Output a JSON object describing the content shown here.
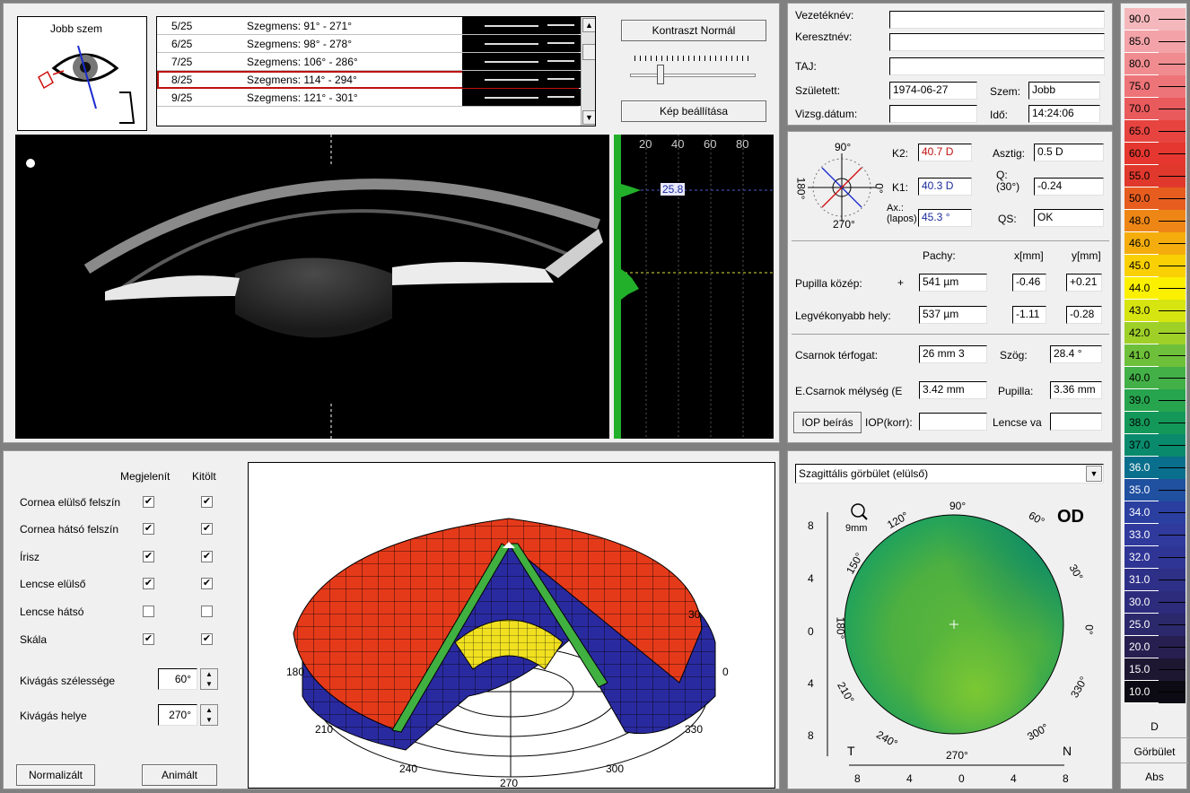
{
  "eye_selector": {
    "label": "Jobb szem"
  },
  "scan_list": {
    "rows": [
      {
        "index": "5/25",
        "segment": "Szegmens: 91° - 271°"
      },
      {
        "index": "6/25",
        "segment": "Szegmens: 98° - 278°"
      },
      {
        "index": "7/25",
        "segment": "Szegmens: 106° - 286°"
      },
      {
        "index": "8/25",
        "segment": "Szegmens: 114° - 294°"
      },
      {
        "index": "9/25",
        "segment": "Szegmens: 121° - 301°"
      }
    ],
    "selected": "8/25"
  },
  "buttons": {
    "contrast": "Kontraszt Normál",
    "image_settings": "Kép beállítása",
    "iop_entry": "IOP beírás",
    "normalized": "Normalizált",
    "animated": "Animált"
  },
  "profile": {
    "ticks": [
      "20",
      "40",
      "60",
      "80"
    ],
    "marker_value": "25.8"
  },
  "patient": {
    "surname_label": "Vezetéknév:",
    "surname": "",
    "firstname_label": "Keresztnév:",
    "firstname": "",
    "taj_label": "TAJ:",
    "taj": "",
    "born_label": "Született:",
    "born": "1974-06-27",
    "eye_label": "Szem:",
    "eye": "Jobb",
    "exam_date_label": "Vizsg.dátum:",
    "exam_date": "",
    "time_label": "Idő:",
    "time": "14:24:06"
  },
  "keratometry": {
    "angle_90": "90°",
    "angle_180": "180°",
    "angle_270": "270°",
    "angle_0": "0°",
    "k2_label": "K2:",
    "k2": "40.7 D",
    "k1_label": "K1:",
    "k1": "40.3 D",
    "ax_label": "Ax.: (lapos)",
    "ax": "45.3 °",
    "astig_label": "Asztig:",
    "astig": "0.5 D",
    "q_label": "Q: (30°)",
    "q": "-0.24",
    "qs_label": "QS:",
    "qs": "OK"
  },
  "pachy": {
    "pachy_header": "Pachy:",
    "x_header": "x[mm]",
    "y_header": "y[mm]",
    "pupil_center_label": "Pupilla közép:",
    "pupil_center_pachy": "541 µm",
    "pupil_center_x": "-0.46",
    "pupil_center_y": "+0.21",
    "thinnest_label": "Legvékonyabb hely:",
    "thinnest_pachy": "537 µm",
    "thinnest_x": "-1.11",
    "thinnest_y": "-0.28"
  },
  "chamber": {
    "volume_label": "Csarnok térfogat:",
    "volume": "26 mm 3",
    "angle_label": "Szög:",
    "angle": "28.4 °",
    "depth_label": "E.Csarnok mélység (E",
    "depth": "3.42 mm",
    "pupil_label": "Pupilla:",
    "pupil": "3.36 mm",
    "iop_corr_label": "IOP(korr):",
    "iop_corr": "",
    "lens_label": "Lencse va",
    "lens": ""
  },
  "display_options": {
    "show_header": "Megjelenít",
    "fill_header": "Kitölt",
    "items": [
      {
        "label": "Cornea elülső felszín",
        "show": true,
        "fill": true
      },
      {
        "label": "Cornea hátsó felszín",
        "show": true,
        "fill": true
      },
      {
        "label": "Írisz",
        "show": true,
        "fill": true
      },
      {
        "label": "Lencse elülső",
        "show": true,
        "fill": true
      },
      {
        "label": "Lencse hátsó",
        "show": false,
        "fill": false
      },
      {
        "label": "Skála",
        "show": true,
        "fill": true
      }
    ],
    "cut_width_label": "Kivágás szélessége",
    "cut_width": "60°",
    "cut_position_label": "Kivágás helye",
    "cut_position": "270°"
  },
  "model3d": {
    "angle_labels": [
      "30",
      "0",
      "330",
      "300",
      "270",
      "240",
      "210",
      "180"
    ]
  },
  "topo_map": {
    "map_select": "Szagittális görbület (elülső)",
    "eye_label": "OD",
    "zoom_label": "9mm",
    "angle_labels": [
      "90°",
      "60°",
      "30°",
      "0°",
      "330°",
      "300°",
      "270°",
      "240°",
      "210°",
      "180°",
      "150°",
      "120°"
    ],
    "y_ticks": [
      "8",
      "4",
      "0",
      "4",
      "8"
    ],
    "x_ticks": [
      "8",
      "4",
      "0",
      "4",
      "8"
    ],
    "temporal": "T",
    "nasal": "N"
  },
  "color_scale": {
    "values": [
      "90.0",
      "85.0",
      "80.0",
      "75.0",
      "70.0",
      "65.0",
      "60.0",
      "55.0",
      "50.0",
      "48.0",
      "46.0",
      "45.0",
      "44.0",
      "43.0",
      "42.0",
      "41.0",
      "40.0",
      "39.0",
      "38.0",
      "37.0",
      "36.0",
      "35.0",
      "34.0",
      "33.0",
      "32.0",
      "31.0",
      "30.0",
      "25.0",
      "20.0",
      "15.0",
      "10.0"
    ],
    "colors": [
      "#f4b8bc",
      "#f3a3a8",
      "#f08c90",
      "#ed7478",
      "#e95a5c",
      "#e74440",
      "#e5372f",
      "#e0382c",
      "#e75d1f",
      "#ee8616",
      "#f4ad0c",
      "#f8d004",
      "#faf000",
      "#d6e410",
      "#9fd028",
      "#6ec03a",
      "#43b047",
      "#26a44e",
      "#14985a",
      "#098a6c",
      "#0a6f8c",
      "#2050a0",
      "#2a3fa0",
      "#2f3a9c",
      "#2f3594",
      "#2e3088",
      "#2d2c7c",
      "#2b286c",
      "#271f50",
      "#1e1732",
      "#0c0a12"
    ],
    "unit": "D",
    "mode1": "Görbület",
    "mode2": "Abs"
  }
}
